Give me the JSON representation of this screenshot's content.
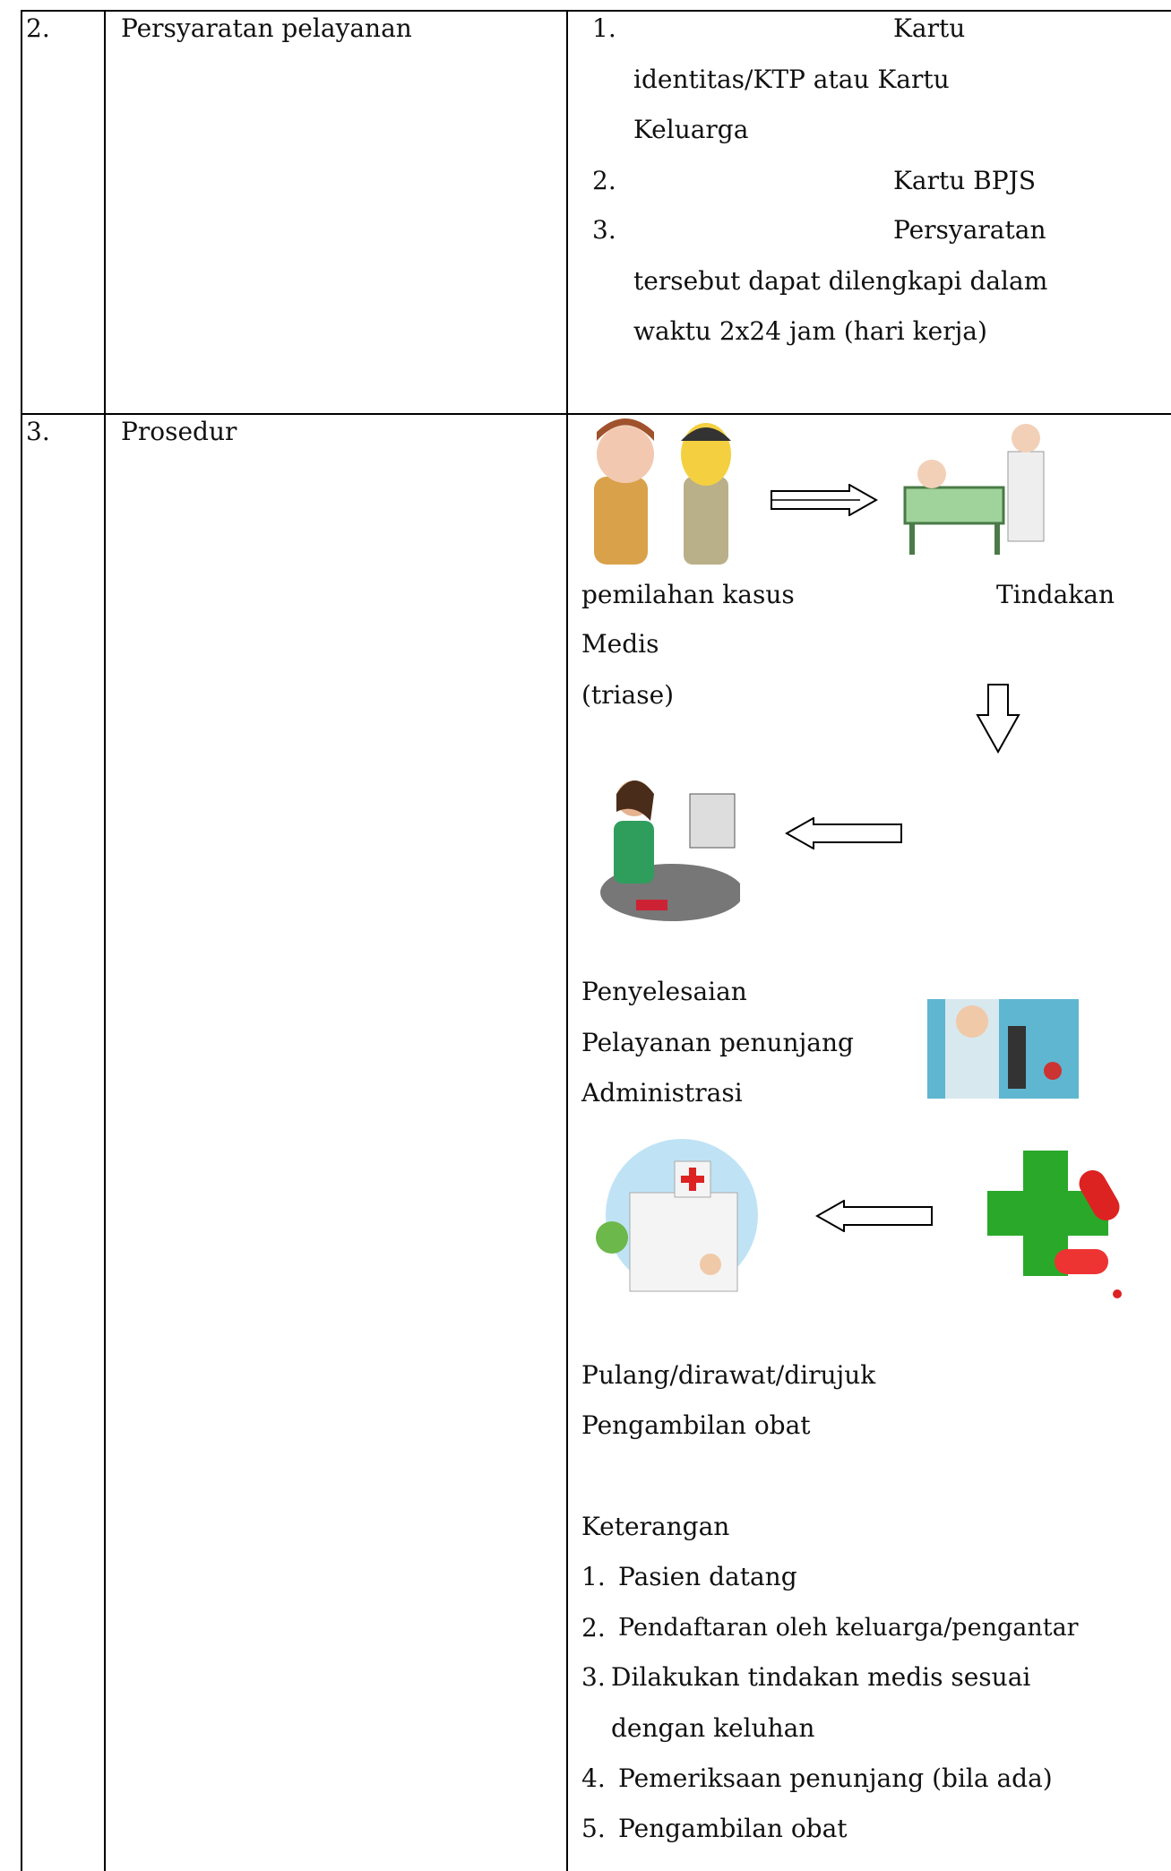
{
  "rows": [
    {
      "number": "2.",
      "label": "Persyaratan pelayanan",
      "items": [
        {
          "number": "1.",
          "lines": [
            "Kartu",
            "identitas/KTP atau Kartu",
            "Keluarga"
          ]
        },
        {
          "number": "2.",
          "lines": [
            "Kartu BPJS"
          ]
        },
        {
          "number": "3.",
          "lines": [
            "Persyaratan",
            "tersebut dapat dilengkapi dalam",
            "waktu 2x24 jam (hari kerja)"
          ]
        }
      ]
    },
    {
      "number": "3.",
      "label": "Prosedur",
      "flow": {
        "labels": [
          "pemilahan kasus",
          "Tindakan",
          "Medis",
          "(triase)",
          "Penyelesaian",
          "Pelayanan penunjang",
          "Administrasi",
          "Pulang/dirawat/dirujuk",
          "Pengambilan obat"
        ]
      },
      "notes": {
        "title": "Keterangan",
        "items": [
          {
            "number": "1.",
            "lines": [
              "Pasien datang"
            ]
          },
          {
            "number": "2.",
            "lines": [
              "Pendaftaran oleh keluarga/pengantar"
            ]
          },
          {
            "number": "3.",
            "lines": [
              "Dilakukan tindakan medis sesuai",
              "dengan keluhan"
            ]
          },
          {
            "number": "4.",
            "lines": [
              "Pemeriksaan penunjang (bila ada)"
            ]
          },
          {
            "number": "5.",
            "lines": [
              "Pengambilan obat"
            ]
          }
        ]
      }
    }
  ]
}
